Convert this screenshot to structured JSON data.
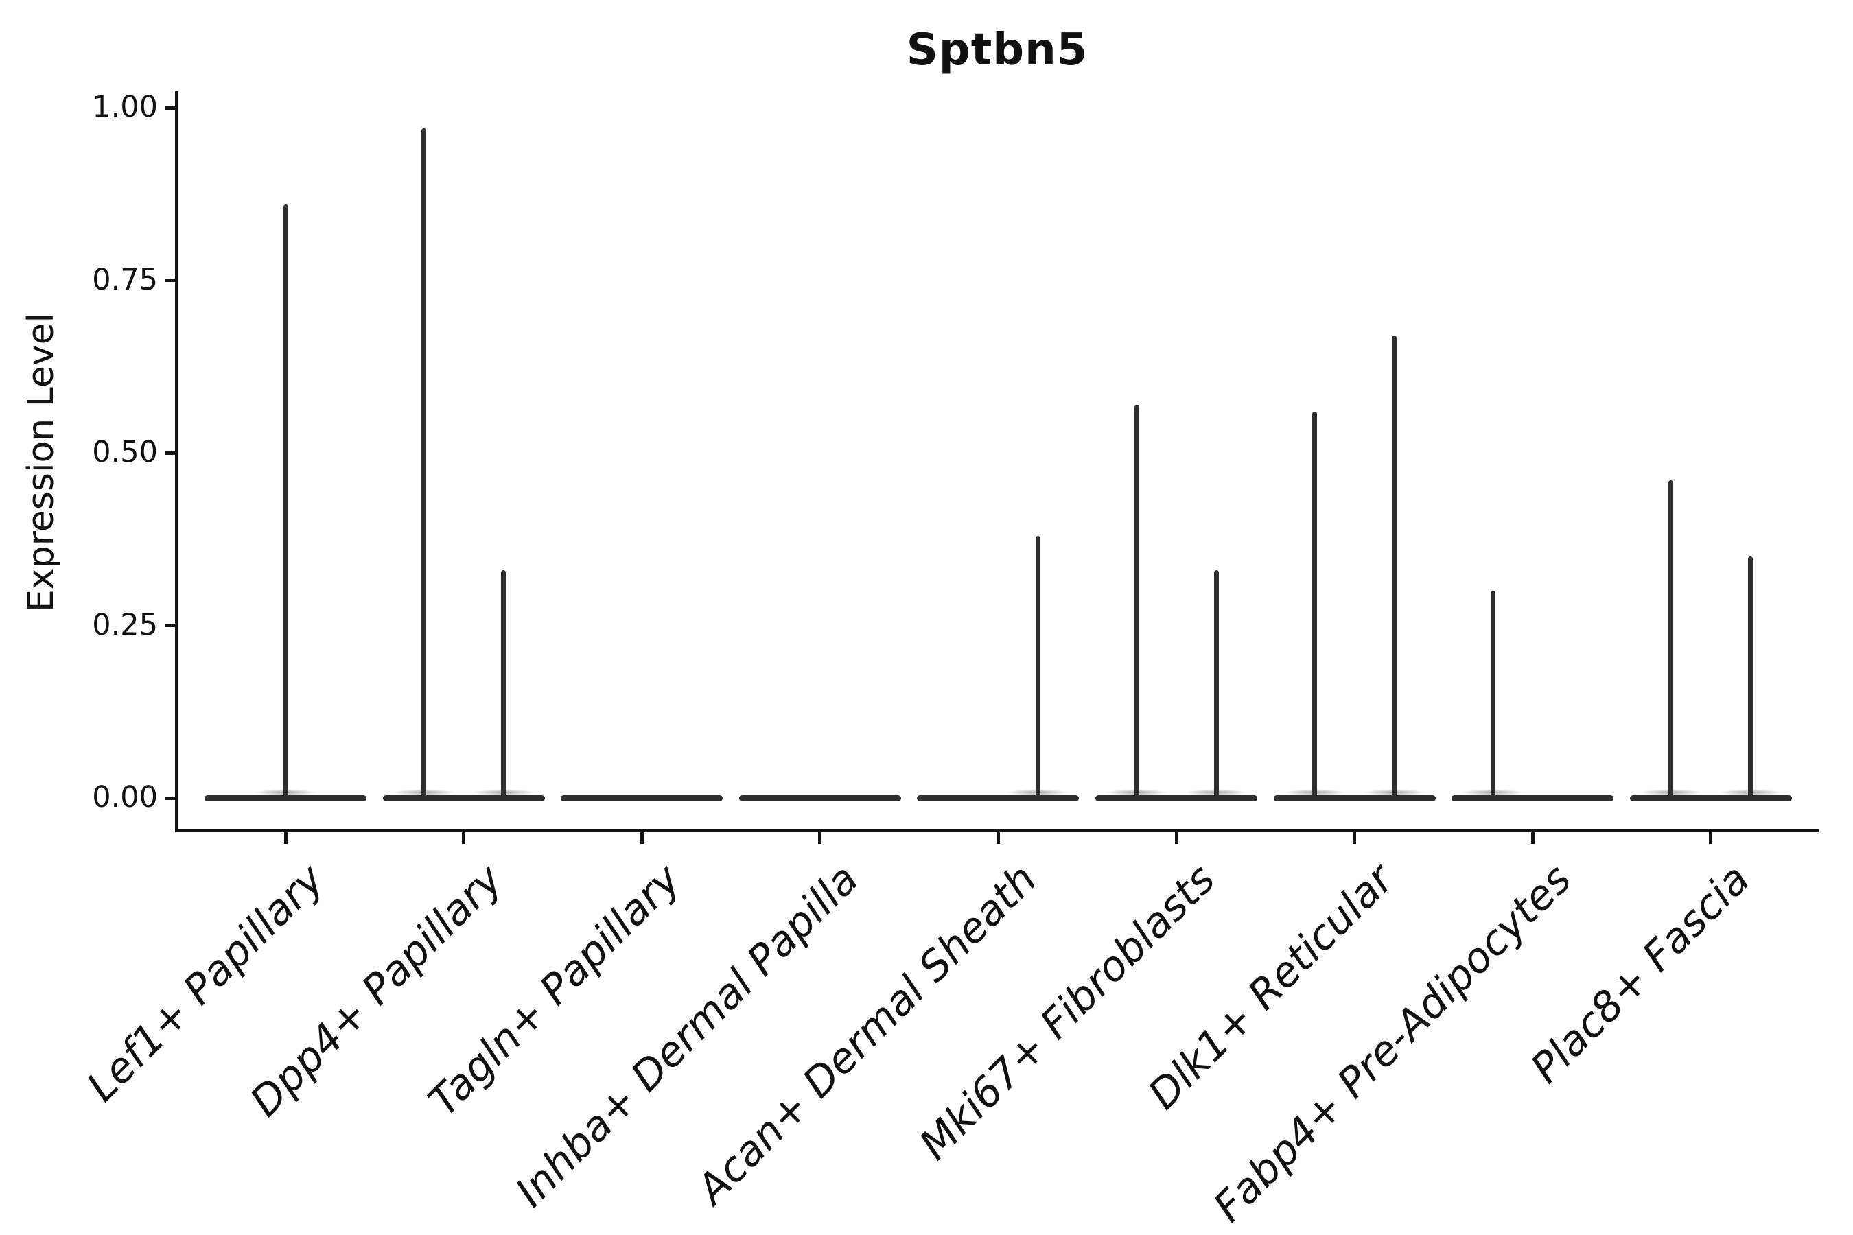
{
  "title": "Sptbn5",
  "y_axis": {
    "label": "Expression Level",
    "ticks": [
      {
        "label": "1.00",
        "value": 1.0
      },
      {
        "label": "0.75",
        "value": 0.75
      },
      {
        "label": "0.50",
        "value": 0.5
      },
      {
        "label": "0.25",
        "value": 0.25
      },
      {
        "label": "0.00",
        "value": 0.0
      }
    ]
  },
  "chart_data": {
    "type": "violin",
    "title": "Sptbn5",
    "xlabel": "",
    "ylabel": "Expression Level",
    "ylim": [
      0,
      1.0
    ],
    "grid": false,
    "legend": "none",
    "description": "Single-cell violin plot; each category shows a flat zero-expression violin body with thin needles rising to the maximum expression of sparse expressing cells. Needle side indicates dodged violin position within the category.",
    "categories": [
      {
        "label": "Lef1+ Papillary",
        "needles": [
          {
            "side": "center",
            "peak": 0.86
          }
        ]
      },
      {
        "label": "Dpp4+ Papillary",
        "needles": [
          {
            "side": "left",
            "peak": 0.97
          },
          {
            "side": "right",
            "peak": 0.33
          }
        ]
      },
      {
        "label": "Tagln+ Papillary",
        "needles": []
      },
      {
        "label": "Inhba+ Dermal Papilla",
        "needles": []
      },
      {
        "label": "Acan+ Dermal Sheath",
        "needles": [
          {
            "side": "right",
            "peak": 0.38
          }
        ]
      },
      {
        "label": "Mki67+ Fibroblasts",
        "needles": [
          {
            "side": "left",
            "peak": 0.57
          },
          {
            "side": "right",
            "peak": 0.33
          }
        ]
      },
      {
        "label": "Dlk1+ Reticular",
        "needles": [
          {
            "side": "left",
            "peak": 0.56
          },
          {
            "side": "right",
            "peak": 0.67
          }
        ]
      },
      {
        "label": "Fabp4+ Pre-Adipocytes",
        "needles": [
          {
            "side": "left",
            "peak": 0.3
          }
        ]
      },
      {
        "label": "Plac8+ Fascia",
        "needles": [
          {
            "side": "left",
            "peak": 0.46
          },
          {
            "side": "right",
            "peak": 0.35
          }
        ]
      }
    ],
    "colors": {
      "ink": "#111111",
      "violin": "#2e2e2e",
      "background": "#ffffff"
    }
  }
}
